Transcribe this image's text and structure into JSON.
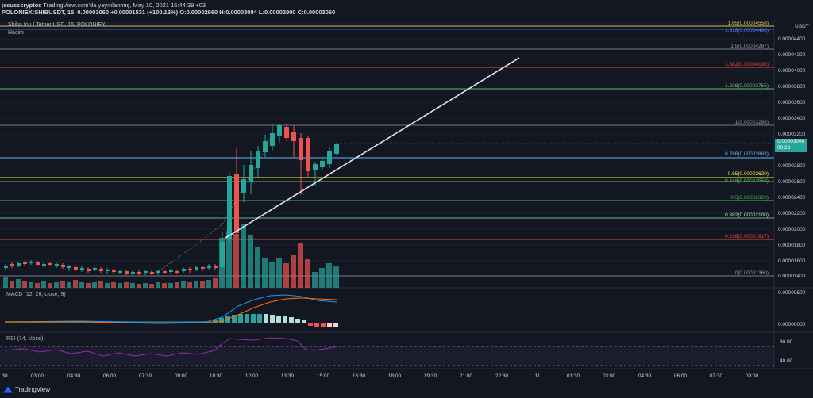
{
  "header": {
    "author": "jesusscryptos",
    "published": "TradingView.com'da yayınlanmış, May 10, 2021 15:44:39 +03",
    "symbol": "POLONIEX:SHIBUSDT, 15",
    "ohlc": "0.00003060 +0.00001531 (+100.13%) O:0.00002960 H:0.00003084 L:0.00002900 C:0.00003060"
  },
  "main": {
    "pair_title": "Shiba Inu / Tether USD, 15, POLONIEX",
    "volume_label": "Hacim",
    "currency": "USDT",
    "last_price": "0.00003060",
    "countdown": "00:23"
  },
  "panes": {
    "macd_label": "MACD (12, 26, close, 9)",
    "rsi_label": "RSI (14, close)"
  },
  "price_axis": [
    "0.00004400",
    "0.00004200",
    "0.00004000",
    "0.00003800",
    "0.00003600",
    "0.00003400",
    "0.00003200",
    "0.00002800",
    "0.00002600",
    "0.00002400",
    "0.00002200",
    "0.00002000",
    "0.00001800",
    "0.00001600",
    "0.00001400"
  ],
  "macd_axis": [
    "0.00000500",
    "0.00000000"
  ],
  "rsi_axis": [
    "80.00",
    "40.00"
  ],
  "time_axis": [
    "30",
    "03:00",
    "04:30",
    "06:00",
    "07:30",
    "09:00",
    "10:30",
    "12:00",
    "13:30",
    "15:00",
    "16:30",
    "18:00",
    "19:30",
    "21:00",
    "22:30",
    "11",
    "01:30",
    "03:00",
    "04:30",
    "06:00",
    "07:30",
    "09:00"
  ],
  "fib_levels": [
    {
      "label": "1.65(0.00004558)",
      "color": "#d5c04f"
    },
    {
      "label": "1.618(0.00004496)",
      "color": "#2962ff"
    },
    {
      "label": "1.5(0.00004267)",
      "color": "#787b86"
    },
    {
      "label": "1.382(0.00004038)",
      "color": "#f44336"
    },
    {
      "label": "1.236(0.00003755)",
      "color": "#66bb6a"
    },
    {
      "label": "1(0.00003298)",
      "color": "#787b86"
    },
    {
      "label": "0.786(0.00002883)",
      "color": "#64b5f6"
    },
    {
      "label": "0.65(0.00002620)",
      "color": "#ffeb3b"
    },
    {
      "label": "0.618(0.00002558)",
      "color": "#66bb6a"
    },
    {
      "label": "0.5(0.00002329)",
      "color": "#4caf50"
    },
    {
      "label": "0.382(0.00002100)",
      "color": "#66bb6a"
    },
    {
      "label": "0.236(0.00001817)",
      "color": "#f44336"
    },
    {
      "label": "0(0.00001360)",
      "color": "#787b86"
    }
  ],
  "colors": {
    "up": "#26a69a",
    "down": "#ef5350",
    "background": "#131722",
    "grid": "#1e222d"
  },
  "footer": {
    "brand": "TradingView"
  }
}
